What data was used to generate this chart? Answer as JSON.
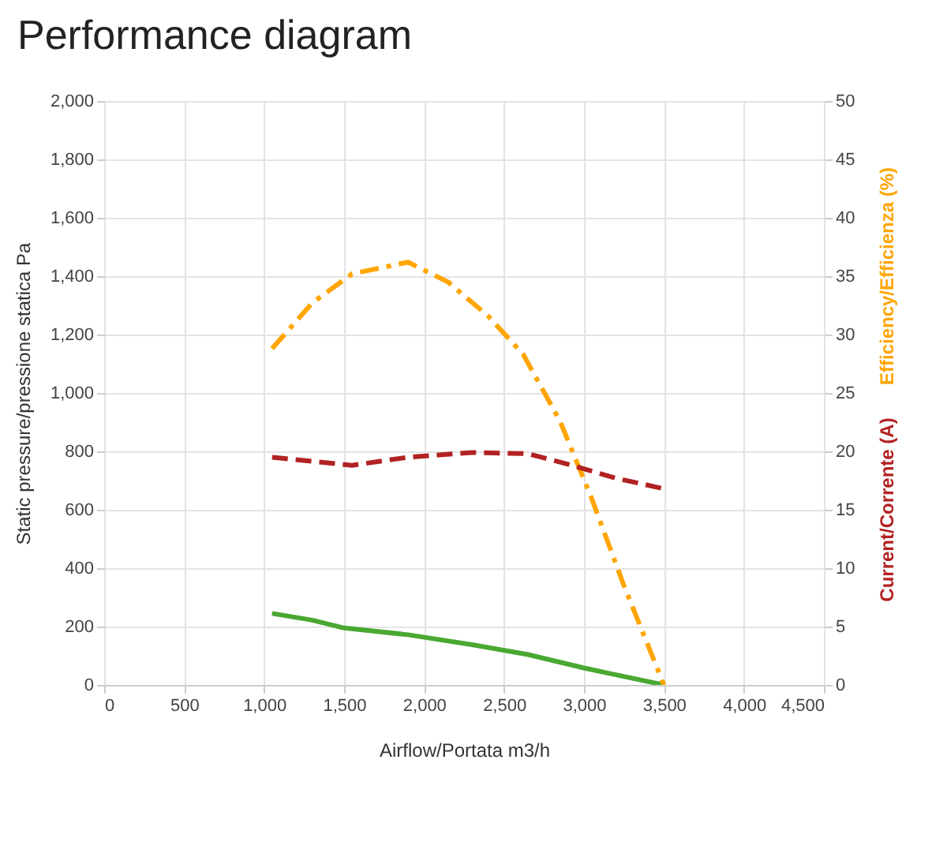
{
  "chart_data": {
    "type": "line",
    "title": "Performance diagram",
    "xlabel": "Airflow/Portata m3/h",
    "ylabel": "Static pressure/pressione statica Pa",
    "y2label": [
      "Efficiency/Efficienza (%)",
      "Current/Corrente (A)"
    ],
    "xlim": [
      0,
      4500
    ],
    "xticks": [
      0,
      500,
      {
        "value": 1000,
        "label": "1,000"
      },
      {
        "value": 1500,
        "label": "1,500"
      },
      {
        "value": 2000,
        "label": "2,000"
      },
      {
        "value": 2500,
        "label": "2,500"
      },
      {
        "value": 3000,
        "label": "3,000"
      },
      {
        "value": 3500,
        "label": "3,500"
      },
      {
        "value": 4000,
        "label": "4,000"
      },
      {
        "value": 4500,
        "label": "4,500"
      }
    ],
    "ylim": [
      0,
      2000
    ],
    "yticks": [
      0,
      200,
      400,
      600,
      800,
      {
        "value": 1000,
        "label": "1,000"
      },
      {
        "value": 1200,
        "label": "1,200"
      },
      {
        "value": 1400,
        "label": "1,400"
      },
      {
        "value": 1600,
        "label": "1,600"
      },
      {
        "value": 1800,
        "label": "1,800"
      },
      {
        "value": 2000,
        "label": "2,000"
      }
    ],
    "y2lim": [
      0,
      50
    ],
    "y2ticks": [
      0,
      5,
      10,
      15,
      20,
      25,
      30,
      35,
      40,
      45,
      50
    ],
    "grid": true,
    "series": [
      {
        "color": "#4aa832",
        "line_style": "solid",
        "x": [
          1050,
          1300,
          1500,
          1900,
          2300,
          2650,
          3000,
          3500
        ],
        "values": [
          245,
          222,
          195,
          172,
          138,
          104,
          58,
          0
        ]
      },
      {
        "color": "#ffa500",
        "line_style": "dashdot",
        "axis": "y2",
        "x": [
          1050,
          1300,
          1550,
          1900,
          2150,
          2400,
          2620,
          2850,
          3050,
          3250,
          3500
        ],
        "values": [
          28.8,
          32.7,
          35.2,
          36.2,
          34.5,
          31.6,
          28.3,
          22.6,
          15.9,
          8.5,
          0
        ]
      },
      {
        "color": "#b22222",
        "line_style": "dashed",
        "axis": "y2",
        "x": [
          1050,
          1550,
          1900,
          2300,
          2650,
          2900,
          3200,
          3500
        ],
        "values": [
          19.5,
          18.8,
          19.5,
          19.9,
          19.8,
          18.9,
          17.7,
          16.8
        ]
      }
    ]
  }
}
